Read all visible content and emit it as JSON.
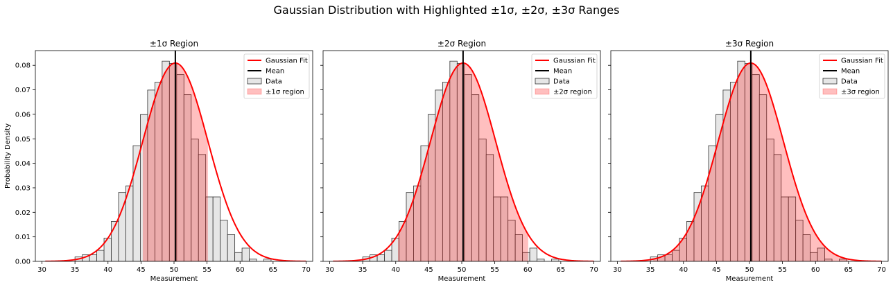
{
  "figure": {
    "suptitle": "Gaussian Distribution with Highlighted ±1σ, ±2σ, ±3σ Ranges",
    "ylabel": "Probability Density"
  },
  "chart_data": [
    {
      "type": "bar",
      "title": "±1σ Region",
      "xlabel": "Measurement",
      "ylabel": "Probability Density",
      "xlim": [
        29,
        71
      ],
      "ylim": [
        0,
        0.086
      ],
      "x_ticks": [
        30,
        35,
        40,
        45,
        50,
        55,
        60,
        65,
        70
      ],
      "y_ticks": [
        0.0,
        0.01,
        0.02,
        0.03,
        0.04,
        0.05,
        0.06,
        0.07,
        0.08
      ],
      "grid": false,
      "legend_position": "upper right",
      "legend": [
        "Gaussian Fit",
        "Mean",
        "Data",
        "±1σ region"
      ],
      "mean": 50.2,
      "sigma": 4.93,
      "shaded_range": [
        45.27,
        55.13
      ],
      "bin_width": 1.1,
      "hist_bins_start": [
        35.0,
        36.1,
        37.2,
        38.3,
        39.4,
        40.5,
        41.6,
        42.7,
        43.8,
        44.9,
        46.0,
        47.1,
        48.2,
        49.3,
        50.4,
        51.5,
        52.6,
        53.7,
        54.8,
        55.9,
        57.0,
        58.1,
        59.2,
        60.3,
        61.4,
        62.5,
        63.6
      ],
      "hist_density": [
        0.0018,
        0.0027,
        0.0027,
        0.0045,
        0.0095,
        0.0163,
        0.0281,
        0.0308,
        0.0472,
        0.0599,
        0.0699,
        0.0731,
        0.0817,
        0.0808,
        0.0762,
        0.068,
        0.0499,
        0.0436,
        0.0263,
        0.0263,
        0.0168,
        0.0109,
        0.0036,
        0.0054,
        0.0009,
        0.0,
        0.0009
      ],
      "fit_range": [
        30.5,
        70
      ]
    },
    {
      "type": "bar",
      "title": "±2σ Region",
      "xlabel": "Measurement",
      "xlim": [
        29,
        71
      ],
      "ylim": [
        0,
        0.086
      ],
      "x_ticks": [
        30,
        35,
        40,
        45,
        50,
        55,
        60,
        65,
        70
      ],
      "grid": false,
      "legend_position": "upper right",
      "legend": [
        "Gaussian Fit",
        "Mean",
        "Data",
        "±2σ region"
      ],
      "mean": 50.2,
      "sigma": 4.93,
      "shaded_range": [
        40.34,
        60.06
      ],
      "bin_width": 1.1,
      "hist_bins_start": [
        35.0,
        36.1,
        37.2,
        38.3,
        39.4,
        40.5,
        41.6,
        42.7,
        43.8,
        44.9,
        46.0,
        47.1,
        48.2,
        49.3,
        50.4,
        51.5,
        52.6,
        53.7,
        54.8,
        55.9,
        57.0,
        58.1,
        59.2,
        60.3,
        61.4,
        62.5,
        63.6
      ],
      "hist_density": [
        0.0018,
        0.0027,
        0.0027,
        0.0045,
        0.0095,
        0.0163,
        0.0281,
        0.0308,
        0.0472,
        0.0599,
        0.0699,
        0.0731,
        0.0817,
        0.0808,
        0.0762,
        0.068,
        0.0499,
        0.0436,
        0.0263,
        0.0263,
        0.0168,
        0.0109,
        0.0036,
        0.0054,
        0.0009,
        0.0,
        0.0009
      ],
      "fit_range": [
        30.5,
        70
      ]
    },
    {
      "type": "bar",
      "title": "±3σ Region",
      "xlabel": "Measurement",
      "xlim": [
        29,
        71
      ],
      "ylim": [
        0,
        0.086
      ],
      "x_ticks": [
        30,
        35,
        40,
        45,
        50,
        55,
        60,
        65,
        70
      ],
      "grid": false,
      "legend_position": "upper right",
      "legend": [
        "Gaussian Fit",
        "Mean",
        "Data",
        "±3σ region"
      ],
      "mean": 50.2,
      "sigma": 4.93,
      "shaded_range": [
        35.41,
        64.99
      ],
      "bin_width": 1.1,
      "hist_bins_start": [
        35.0,
        36.1,
        37.2,
        38.3,
        39.4,
        40.5,
        41.6,
        42.7,
        43.8,
        44.9,
        46.0,
        47.1,
        48.2,
        49.3,
        50.4,
        51.5,
        52.6,
        53.7,
        54.8,
        55.9,
        57.0,
        58.1,
        59.2,
        60.3,
        61.4,
        62.5,
        63.6
      ],
      "hist_density": [
        0.0018,
        0.0027,
        0.0027,
        0.0045,
        0.0095,
        0.0163,
        0.0281,
        0.0308,
        0.0472,
        0.0599,
        0.0699,
        0.0731,
        0.0817,
        0.0808,
        0.0762,
        0.068,
        0.0499,
        0.0436,
        0.0263,
        0.0263,
        0.0168,
        0.0109,
        0.0036,
        0.0054,
        0.0009,
        0.0,
        0.0009
      ],
      "fit_range": [
        30.5,
        70
      ]
    }
  ],
  "colors": {
    "fit_line": "#ff0000",
    "mean_line": "#000000",
    "hist_fill": "#e6e6e6",
    "hist_edge": "#333333",
    "region_fill": "#ff0000",
    "region_opacity": 0.25
  }
}
